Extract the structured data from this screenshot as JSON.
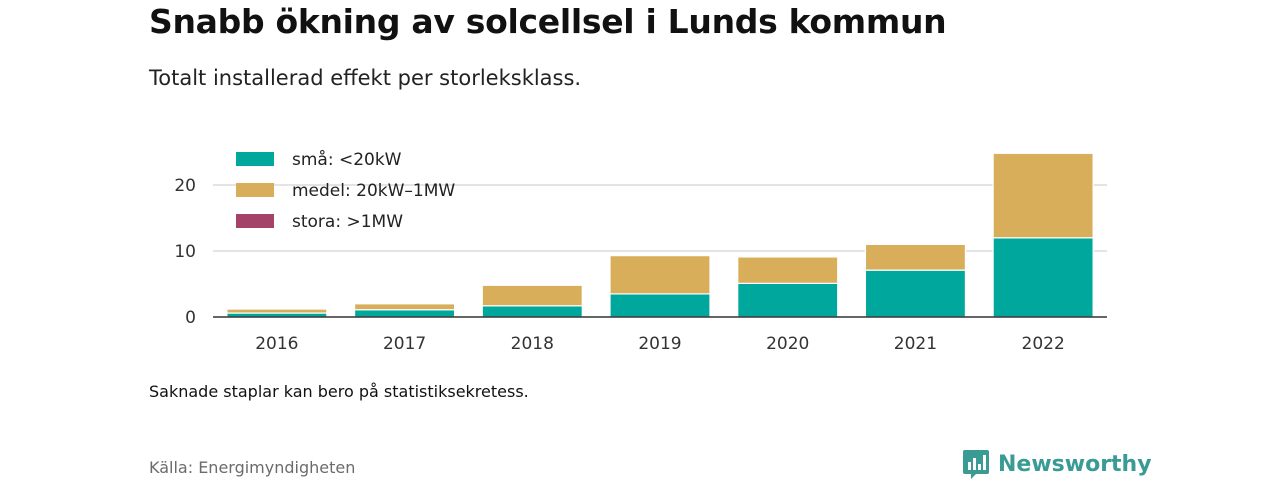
{
  "title": "Snabb ökning av solcellsel i Lunds kommun",
  "subtitle": "Totalt installerad effekt per storleksklass.",
  "note": "Saknade staplar kan bero på statistiksekretess.",
  "source": "Källa: Energimyndigheten",
  "brand": "Newsworthy",
  "chart_data": {
    "type": "bar",
    "stacked": true,
    "categories": [
      "2016",
      "2017",
      "2018",
      "2019",
      "2020",
      "2021",
      "2022"
    ],
    "series": [
      {
        "name": "små: <20kW",
        "color": "#00a79d",
        "values": [
          0.6,
          1.1,
          1.7,
          3.5,
          5.1,
          7.1,
          12.0
        ]
      },
      {
        "name": "medel: 20kW–1MW",
        "color": "#d9ae5a",
        "values": [
          0.6,
          0.9,
          3.1,
          5.8,
          4.0,
          3.9,
          12.8
        ]
      },
      {
        "name": "stora: >1MW",
        "color": "#a4426a",
        "values": [
          0,
          0,
          0,
          0,
          0,
          0,
          0
        ]
      }
    ],
    "yticks": [
      0,
      10,
      20
    ],
    "ylim": [
      0,
      25
    ],
    "grid": true,
    "legend_position": "top-left"
  }
}
